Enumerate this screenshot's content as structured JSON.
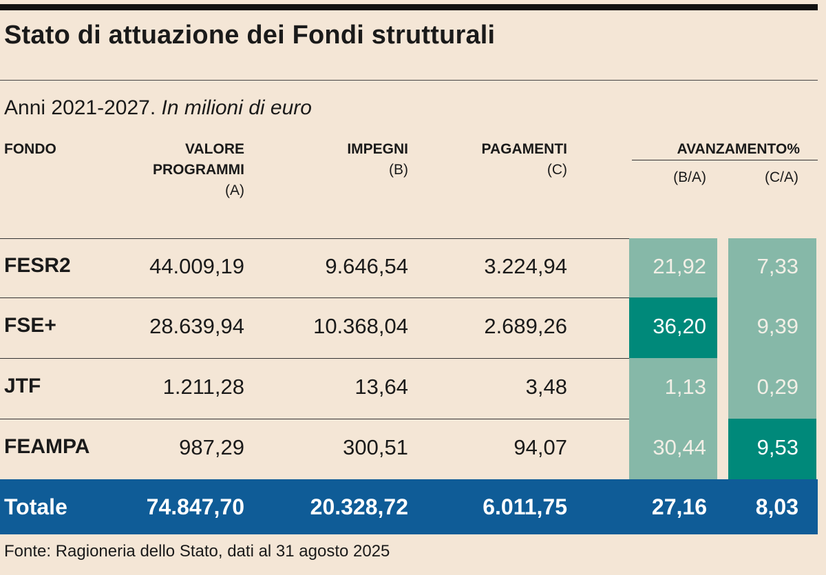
{
  "title": "Stato di attuazione dei Fondi strutturali",
  "subtitle_main": "Anni 2021-2027.",
  "subtitle_italic": "In milioni di euro",
  "headers": {
    "fondo": "FONDO",
    "valore_l1": "VALORE",
    "valore_l2": "PROGRAMMI",
    "valore_sub": "(A)",
    "impegni": "IMPEGNI",
    "impegni_sub": "(B)",
    "pagamenti": "PAGAMENTI",
    "pagamenti_sub": "(C)",
    "avanzamento": "AVANZAMENTO%",
    "ba": "(B/A)",
    "ca": "(C/A)"
  },
  "chart_data": {
    "type": "table",
    "title": "Stato di attuazione dei Fondi strutturali",
    "columns": [
      "FONDO",
      "VALORE PROGRAMMI (A)",
      "IMPEGNI (B)",
      "PAGAMENTI (C)",
      "(B/A)",
      "(C/A)"
    ],
    "rows": [
      {
        "fondo": "FESR2",
        "valore": "44.009,19",
        "impegni": "9.646,54",
        "pagamenti": "3.224,94",
        "ba": "21,92",
        "ca": "7,33"
      },
      {
        "fondo": "FSE+",
        "valore": "28.639,94",
        "impegni": "10.368,04",
        "pagamenti": "2.689,26",
        "ba": "36,20",
        "ca": "9,39"
      },
      {
        "fondo": "JTF",
        "valore": "1.211,28",
        "impegni": "13,64",
        "pagamenti": "3,48",
        "ba": "1,13",
        "ca": "0,29"
      },
      {
        "fondo": "FEAMPA",
        "valore": "987,29",
        "impegni": "300,51",
        "pagamenti": "94,07",
        "ba": "30,44",
        "ca": "9,53"
      }
    ],
    "total": {
      "fondo": "Totale",
      "valore": "74.847,70",
      "impegni": "20.328,72",
      "pagamenti": "6.011,75",
      "ba": "27,16",
      "ca": "8,03"
    }
  },
  "colors": {
    "background": "#f4e6d6",
    "light_teal": "#86b8a8",
    "dark_teal": "#00897a",
    "total_blue": "#0f5c97"
  },
  "source": "Fonte: Ragioneria dello Stato, dati al 31 agosto 2025"
}
